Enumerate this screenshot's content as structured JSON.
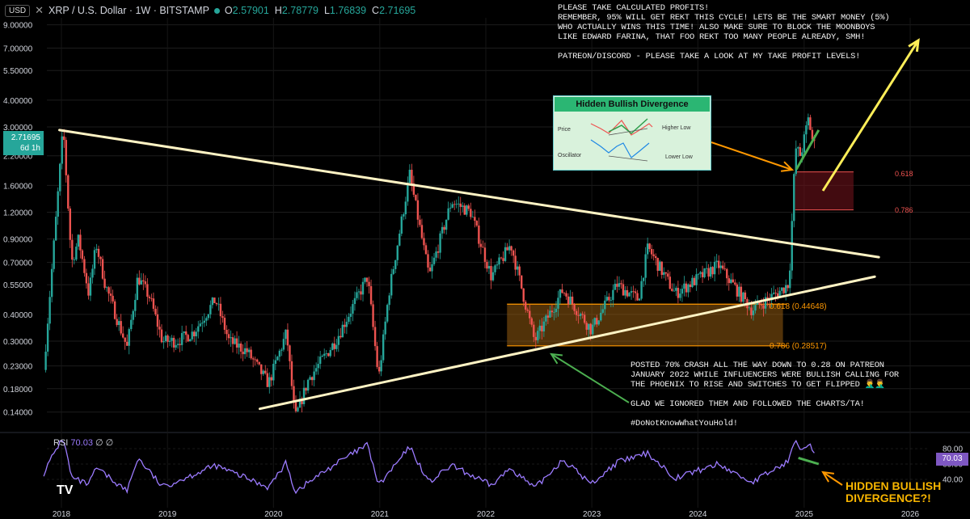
{
  "header": {
    "currency": "USD",
    "symbol": "XRP / U.S. Dollar · 1W · BITSTAMP",
    "open_label": "O",
    "open": "2.57901",
    "high_label": "H",
    "high": "2.78779",
    "low_label": "L",
    "low": "1.76839",
    "close_label": "C",
    "close": "2.71695"
  },
  "price_tag": {
    "price": "2.71695",
    "countdown": "6d 1h"
  },
  "rsi": {
    "label": "RSI",
    "value": "70.03",
    "extra": "∅ ∅",
    "levels": [
      "80.00",
      "60.00",
      "40.00"
    ]
  },
  "notes": {
    "top": "PLEASE TAKE CALCULATED PROFITS!\nREMEMBER, 95% WILL GET REKT THIS CYCLE! LETS BE THE SMART MONEY (5%)\nWHO ACTUALLY WINS THIS TIME! ALSO MAKE SURE TO BLOCK THE MOONBOYS\nLIKE EDWARD FARINA, THAT FOO REKT TOO MANY PEOPLE ALREADY, SMH!\n\nPATREON/DISCORD - PLEASE TAKE A LOOK AT MY TAKE PROFIT LEVELS!",
    "bottom": "POSTED 70% CRASH ALL THE WAY DOWN TO 0.28 ON PATREON\nJANUARY 2022 WHILE INFLUENCERS WERE BULLISH CALLING FOR\nTHE PHOENIX TO RISE AND SWITCHES TO GET FLIPPED 🤦‍♂️🤦‍♂️\n\nGLAD WE IGNORED THEM AND FOLLOWED THE CHARTS/TA!\n\n#DoNotKnowWhatYouHold!",
    "hidden_divergence": "HIDDEN BULLISH\nDIVERGENCE?!"
  },
  "inset": {
    "title": "Hidden Bullish Divergence",
    "price_label": "Price",
    "higher_low": "Higher Low",
    "oscillator_label": "Oscillator",
    "lower_low": "Lower Low"
  },
  "fib": {
    "lower_618": "0.618 (0.44648)",
    "lower_786": "0.786 (0.28517)",
    "upper_618": "0.618",
    "upper_786": "0.786"
  },
  "branding": {
    "logo": "TV"
  },
  "colors": {
    "up": "#26a69a",
    "down": "#ef5350",
    "trendline": "#fff3c4",
    "rsi": "#9c7bff",
    "arrow_yellow": "#ffee58",
    "arrow_orange": "#ff9800",
    "arrow_green": "#4caf50"
  },
  "chart_data": {
    "type": "candlestick",
    "scale": "log",
    "y_ticks": [
      "9.00000",
      "7.00000",
      "5.50000",
      "4.00000",
      "3.00000",
      "2.20000",
      "1.60000",
      "1.20000",
      "0.90000",
      "0.70000",
      "0.55000",
      "0.40000",
      "0.30000",
      "0.23000",
      "0.18000",
      "0.14000"
    ],
    "x_ticks": [
      "2018",
      "2019",
      "2020",
      "2021",
      "2022",
      "2023",
      "2024",
      "2025",
      "2026"
    ],
    "price_path": [
      [
        "2017-11-01",
        0.22
      ],
      [
        "2017-12-15",
        1.2
      ],
      [
        "2018-01-07",
        3.0
      ],
      [
        "2018-02-05",
        0.7
      ],
      [
        "2018-03-01",
        0.9
      ],
      [
        "2018-04-05",
        0.5
      ],
      [
        "2018-05-01",
        0.85
      ],
      [
        "2018-06-01",
        0.55
      ],
      [
        "2018-08-15",
        0.28
      ],
      [
        "2018-09-21",
        0.6
      ],
      [
        "2018-11-01",
        0.48
      ],
      [
        "2018-12-15",
        0.3
      ],
      [
        "2019-02-01",
        0.3
      ],
      [
        "2019-04-01",
        0.33
      ],
      [
        "2019-06-15",
        0.47
      ],
      [
        "2019-08-01",
        0.3
      ],
      [
        "2019-10-01",
        0.27
      ],
      [
        "2019-12-15",
        0.19
      ],
      [
        "2020-02-15",
        0.33
      ],
      [
        "2020-03-15",
        0.13
      ],
      [
        "2020-05-01",
        0.2
      ],
      [
        "2020-08-01",
        0.3
      ],
      [
        "2020-11-20",
        0.6
      ],
      [
        "2020-12-28",
        0.2
      ],
      [
        "2021-02-01",
        0.5
      ],
      [
        "2021-04-14",
        1.8
      ],
      [
        "2021-06-20",
        0.6
      ],
      [
        "2021-09-05",
        1.35
      ],
      [
        "2021-11-10",
        1.2
      ],
      [
        "2022-01-20",
        0.6
      ],
      [
        "2022-03-28",
        0.85
      ],
      [
        "2022-06-18",
        0.3
      ],
      [
        "2022-09-23",
        0.52
      ],
      [
        "2022-12-30",
        0.34
      ],
      [
        "2023-03-29",
        0.55
      ],
      [
        "2023-06-10",
        0.47
      ],
      [
        "2023-07-13",
        0.82
      ],
      [
        "2023-10-15",
        0.5
      ],
      [
        "2024-03-11",
        0.68
      ],
      [
        "2024-07-05",
        0.42
      ],
      [
        "2024-10-15",
        0.52
      ],
      [
        "2024-11-10",
        0.56
      ],
      [
        "2024-12-02",
        2.4
      ],
      [
        "2024-12-20",
        2.2
      ],
      [
        "2025-01-16",
        3.3
      ],
      [
        "2025-02-03",
        2.4
      ],
      [
        "2025-02-10",
        2.72
      ]
    ],
    "rsi_path": [
      [
        "2017-11-01",
        48
      ],
      [
        "2017-12-15",
        80
      ],
      [
        "2018-01-07",
        95
      ],
      [
        "2018-02-05",
        42
      ],
      [
        "2018-04-05",
        33
      ],
      [
        "2018-05-01",
        55
      ],
      [
        "2018-08-15",
        25
      ],
      [
        "2018-09-21",
        68
      ],
      [
        "2018-12-15",
        30
      ],
      [
        "2019-06-15",
        58
      ],
      [
        "2019-12-15",
        30
      ],
      [
        "2020-02-15",
        62
      ],
      [
        "2020-03-15",
        24
      ],
      [
        "2020-08-01",
        60
      ],
      [
        "2020-11-20",
        85
      ],
      [
        "2020-12-28",
        32
      ],
      [
        "2021-04-14",
        82
      ],
      [
        "2021-06-20",
        36
      ],
      [
        "2021-09-05",
        58
      ],
      [
        "2022-01-20",
        32
      ],
      [
        "2022-03-28",
        55
      ],
      [
        "2022-06-18",
        28
      ],
      [
        "2022-09-23",
        66
      ],
      [
        "2022-12-30",
        34
      ],
      [
        "2023-03-29",
        62
      ],
      [
        "2023-07-13",
        74
      ],
      [
        "2023-10-15",
        42
      ],
      [
        "2024-03-11",
        60
      ],
      [
        "2024-07-05",
        36
      ],
      [
        "2024-11-10",
        64
      ],
      [
        "2024-12-02",
        96
      ],
      [
        "2024-12-20",
        80
      ],
      [
        "2025-01-16",
        88
      ],
      [
        "2025-02-10",
        70
      ]
    ],
    "trendlines": [
      {
        "name": "upper",
        "from": [
          "2017-12-25",
          2.9
        ],
        "to": [
          "2025-09-15",
          0.74
        ]
      },
      {
        "name": "lower",
        "from": [
          "2019-11-15",
          0.145
        ],
        "to": [
          "2025-09-01",
          0.6
        ]
      }
    ],
    "fib_zones": [
      {
        "levels": [
          0.44648,
          0.28517
        ],
        "from": "2022-03-15",
        "to": "2024-10-20"
      },
      {
        "levels": [
          1.85,
          1.23
        ],
        "from": "2024-12-01",
        "to": "2025-06-20"
      }
    ]
  }
}
